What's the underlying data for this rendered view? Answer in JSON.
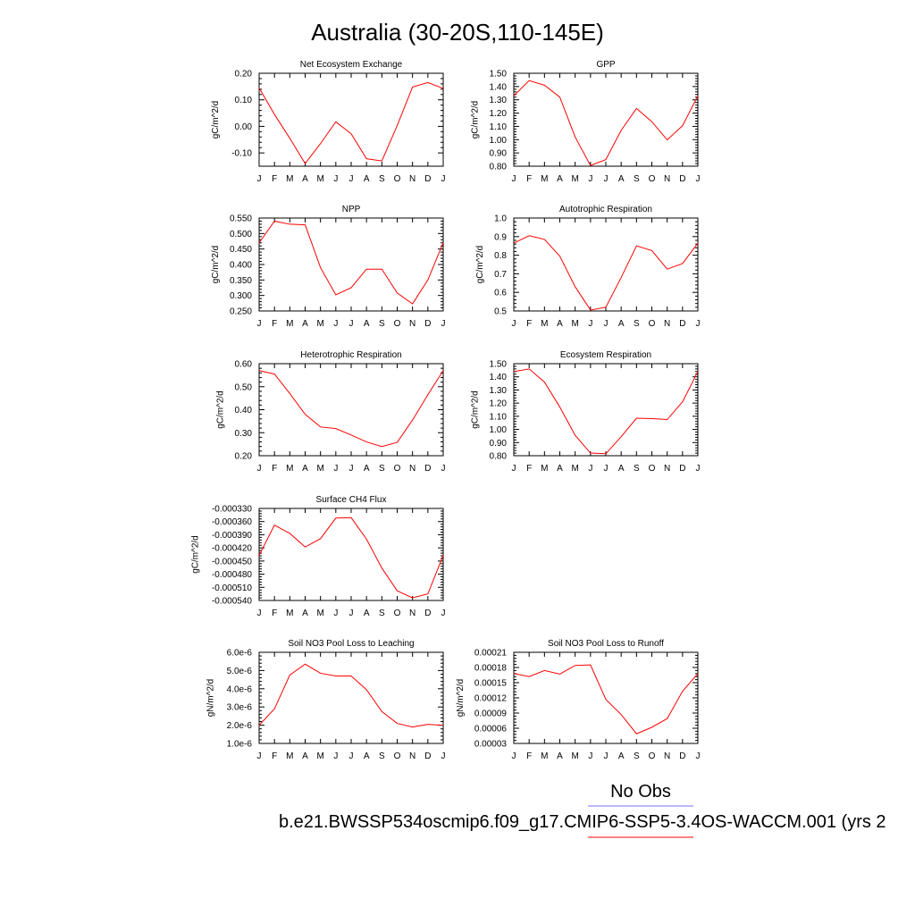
{
  "title": "Australia (30-20S,110-145E)",
  "legend": {
    "obs_label": "No Obs",
    "obs_color": "#7777ee",
    "case_label": "b.e21.BWSSP534oscmip6.f09_g17.CMIP6-SSP5-3.4OS-WACCM.001 (yrs 2",
    "case_color": "#ff0000"
  },
  "chart_data": [
    {
      "type": "line",
      "title": "Net Ecosystem Exchange",
      "ylabel": "gC/m^2/d",
      "months": [
        "J",
        "F",
        "M",
        "A",
        "M",
        "J",
        "J",
        "A",
        "S",
        "O",
        "N",
        "D",
        "J"
      ],
      "ylim": [
        -0.15,
        0.2
      ],
      "yticks": [
        "-0.10",
        "0.00",
        "0.10",
        "0.20"
      ],
      "yticks_values": [
        -0.1,
        0.0,
        0.1,
        0.2
      ],
      "series": [
        {
          "values": [
            0.145,
            0.045,
            -0.045,
            -0.14,
            -0.065,
            0.017,
            -0.028,
            -0.122,
            -0.13,
            0.003,
            0.148,
            0.165,
            0.143
          ]
        }
      ]
    },
    {
      "type": "line",
      "title": "GPP",
      "ylabel": "gC/m^2/d",
      "months": [
        "J",
        "F",
        "M",
        "A",
        "M",
        "J",
        "J",
        "A",
        "S",
        "O",
        "N",
        "D",
        "J"
      ],
      "ylim": [
        0.8,
        1.5
      ],
      "yticks": [
        "0.80",
        "0.90",
        "1.00",
        "1.10",
        "1.20",
        "1.30",
        "1.40",
        "1.50"
      ],
      "yticks_values": [
        0.8,
        0.9,
        1.0,
        1.1,
        1.2,
        1.3,
        1.4,
        1.5
      ],
      "series": [
        {
          "values": [
            1.33,
            1.445,
            1.41,
            1.32,
            1.02,
            0.805,
            0.85,
            1.07,
            1.235,
            1.135,
            0.998,
            1.105,
            1.33
          ]
        }
      ]
    },
    {
      "type": "line",
      "title": "NPP",
      "ylabel": "gC/m^2/d",
      "months": [
        "J",
        "F",
        "M",
        "A",
        "M",
        "J",
        "J",
        "A",
        "S",
        "O",
        "N",
        "D",
        "J"
      ],
      "ylim": [
        0.25,
        0.55
      ],
      "yticks": [
        "0.250",
        "0.300",
        "0.350",
        "0.400",
        "0.450",
        "0.500",
        "0.550"
      ],
      "yticks_values": [
        0.25,
        0.3,
        0.35,
        0.4,
        0.45,
        0.5,
        0.55
      ],
      "series": [
        {
          "values": [
            0.47,
            0.54,
            0.53,
            0.528,
            0.39,
            0.302,
            0.325,
            0.385,
            0.385,
            0.308,
            0.273,
            0.35,
            0.47
          ]
        }
      ]
    },
    {
      "type": "line",
      "title": "Autotrophic Respiration",
      "ylabel": "gC/m^2/d",
      "months": [
        "J",
        "F",
        "M",
        "A",
        "M",
        "J",
        "J",
        "A",
        "S",
        "O",
        "N",
        "D",
        "J"
      ],
      "ylim": [
        0.5,
        1.0
      ],
      "yticks": [
        "0.5",
        "0.6",
        "0.7",
        "0.8",
        "0.9",
        "1.0"
      ],
      "yticks_values": [
        0.5,
        0.6,
        0.7,
        0.8,
        0.9,
        1.0
      ],
      "series": [
        {
          "values": [
            0.865,
            0.905,
            0.885,
            0.795,
            0.63,
            0.505,
            0.52,
            0.68,
            0.85,
            0.825,
            0.725,
            0.755,
            0.865
          ]
        }
      ]
    },
    {
      "type": "line",
      "title": "Heterotrophic Respiration",
      "ylabel": "gC/m^2/d",
      "months": [
        "J",
        "F",
        "M",
        "A",
        "M",
        "J",
        "J",
        "A",
        "S",
        "O",
        "N",
        "D",
        "J"
      ],
      "ylim": [
        0.2,
        0.6
      ],
      "yticks": [
        "0.20",
        "0.30",
        "0.40",
        "0.50",
        "0.60"
      ],
      "yticks_values": [
        0.2,
        0.3,
        0.4,
        0.5,
        0.6
      ],
      "series": [
        {
          "values": [
            0.57,
            0.555,
            0.47,
            0.38,
            0.325,
            0.318,
            0.29,
            0.26,
            0.24,
            0.258,
            0.355,
            0.465,
            0.57
          ]
        }
      ]
    },
    {
      "type": "line",
      "title": "Ecosystem Respiration",
      "ylabel": "gC/m^2/d",
      "months": [
        "J",
        "F",
        "M",
        "A",
        "M",
        "J",
        "J",
        "A",
        "S",
        "O",
        "N",
        "D",
        "J"
      ],
      "ylim": [
        0.8,
        1.5
      ],
      "yticks": [
        "0.80",
        "0.90",
        "1.00",
        "1.10",
        "1.20",
        "1.30",
        "1.40",
        "1.50"
      ],
      "yticks_values": [
        0.8,
        0.9,
        1.0,
        1.1,
        1.2,
        1.3,
        1.4,
        1.5
      ],
      "series": [
        {
          "values": [
            1.44,
            1.46,
            1.36,
            1.17,
            0.955,
            0.82,
            0.815,
            0.945,
            1.085,
            1.082,
            1.075,
            1.21,
            1.44
          ]
        }
      ]
    },
    {
      "type": "line",
      "title": "Surface CH4 Flux",
      "ylabel": "gC/m^2/d",
      "months": [
        "J",
        "F",
        "M",
        "A",
        "M",
        "J",
        "J",
        "A",
        "S",
        "O",
        "N",
        "D",
        "J"
      ],
      "ylim": [
        -0.00054,
        -0.00033
      ],
      "yticks": [
        "-0.000540",
        "-0.000510",
        "-0.000480",
        "-0.000450",
        "-0.000420",
        "-0.000390",
        "-0.000360",
        "-0.000330"
      ],
      "yticks_values": [
        -0.00054,
        -0.00051,
        -0.00048,
        -0.00045,
        -0.00042,
        -0.00039,
        -0.00036,
        -0.00033
      ],
      "series": [
        {
          "values": [
            -0.000437,
            -0.000368,
            -0.000387,
            -0.000418,
            -0.000399,
            -0.000352,
            -0.000351,
            -0.0004,
            -0.000466,
            -0.000518,
            -0.000534,
            -0.000525,
            -0.000437
          ]
        }
      ]
    },
    {
      "type": "line",
      "title": "Soil NO3 Pool Loss to Leaching",
      "ylabel": "gN/m^2/d",
      "months": [
        "J",
        "F",
        "M",
        "A",
        "M",
        "J",
        "J",
        "A",
        "S",
        "O",
        "N",
        "D",
        "J"
      ],
      "ylim": [
        1e-06,
        6e-06
      ],
      "yticks": [
        "1.0e-6",
        "2.0e-6",
        "3.0e-6",
        "4.0e-6",
        "5.0e-6",
        "6.0e-6"
      ],
      "yticks_values": [
        1e-06,
        2e-06,
        3e-06,
        4e-06,
        5e-06,
        6e-06
      ],
      "series": [
        {
          "values": [
            2e-06,
            2.9e-06,
            4.75e-06,
            5.35e-06,
            4.85e-06,
            4.7e-06,
            4.7e-06,
            3.95e-06,
            2.75e-06,
            2.1e-06,
            1.9e-06,
            2.05e-06,
            2e-06
          ]
        }
      ]
    },
    {
      "type": "line",
      "title": "Soil NO3 Pool Loss to Runoff",
      "ylabel": "gN/m^2/d",
      "months": [
        "J",
        "F",
        "M",
        "A",
        "M",
        "J",
        "J",
        "A",
        "S",
        "O",
        "N",
        "D",
        "J"
      ],
      "ylim": [
        3e-05,
        0.00021
      ],
      "yticks": [
        "0.00003",
        "0.00006",
        "0.00009",
        "0.00012",
        "0.00015",
        "0.00018",
        "0.00021"
      ],
      "yticks_values": [
        3e-05,
        6e-05,
        9e-05,
        0.00012,
        0.00015,
        0.00018,
        0.00021
      ],
      "series": [
        {
          "values": [
            0.000168,
            0.000162,
            0.000174,
            0.000167,
            0.000184,
            0.000185,
            0.000117,
            8.7e-05,
            4.9e-05,
            6.2e-05,
            7.9e-05,
            0.000133,
            0.000168
          ]
        }
      ]
    }
  ]
}
